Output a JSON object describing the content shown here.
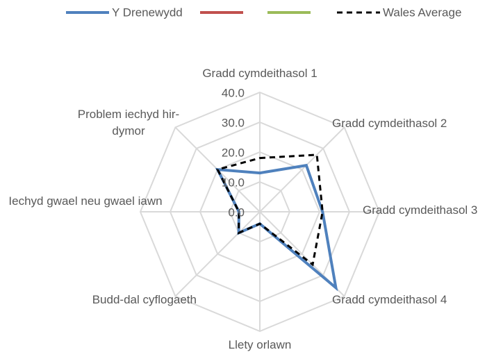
{
  "chart_data": {
    "type": "radar",
    "categories": [
      "Gradd cymdeithasol 1",
      "Gradd cymdeithasol 2",
      "Gradd cymdeithasol 3",
      "Gradd cymdeithasol 4",
      "Llety orlawn",
      "Budd-dal cyflogaeth",
      "Iechyd gwael neu gwael iawn",
      "Problem iechyd hir-dymor"
    ],
    "series": [
      {
        "name": "Y Drenewydd",
        "color": "#4f81bd",
        "values": [
          13,
          22,
          21,
          36,
          4,
          10,
          7,
          20
        ]
      },
      {
        "name": null,
        "color": "#c0504d",
        "values": [
          null,
          null,
          null,
          null,
          null,
          null,
          null,
          null
        ]
      },
      {
        "name": null,
        "color": "#9bbb59",
        "values": [
          null,
          null,
          null,
          null,
          null,
          null,
          null,
          null
        ]
      },
      {
        "name": "Wales Average",
        "color": "#000000",
        "dashed": true,
        "values": [
          18,
          27,
          21,
          25,
          4,
          10,
          7,
          20
        ]
      }
    ],
    "ylim": [
      0,
      40
    ],
    "yticks": [
      {
        "value": 0,
        "label": "0.0"
      },
      {
        "value": 10,
        "label": "10.0"
      },
      {
        "value": 20,
        "label": "20.0"
      },
      {
        "value": 30,
        "label": "30.0"
      },
      {
        "value": 40,
        "label": "40.0"
      }
    ],
    "grid": true,
    "legend": "top"
  }
}
